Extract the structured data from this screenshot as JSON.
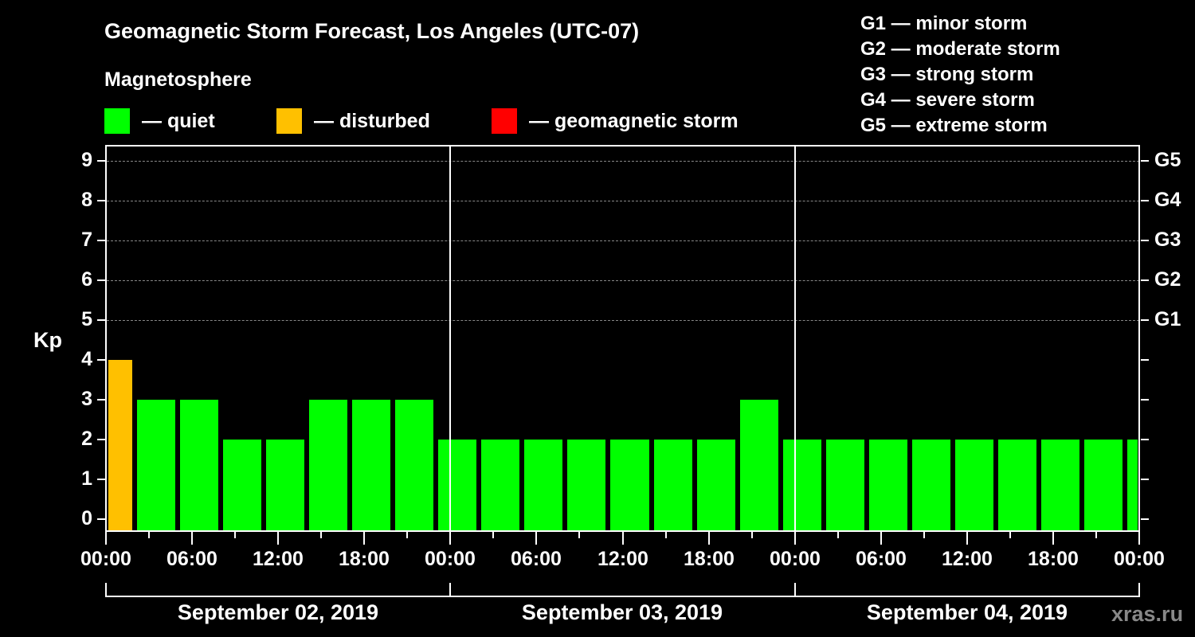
{
  "title": "Geomagnetic Storm Forecast, Los Angeles (UTC-07)",
  "subtitle": "Magnetosphere",
  "legend": [
    {
      "label": "— quiet",
      "color": "#00ff00"
    },
    {
      "label": "— disturbed",
      "color": "#ffc000"
    },
    {
      "label": "— geomagnetic storm",
      "color": "#ff0000"
    }
  ],
  "g_scale": [
    "G1 — minor storm",
    "G2 — moderate storm",
    "G3 — strong storm",
    "G4 — severe storm",
    "G5 — extreme storm"
  ],
  "y_axis_label": "Kp",
  "right_axis_labels": {
    "5": "G1",
    "6": "G2",
    "7": "G3",
    "8": "G4",
    "9": "G5"
  },
  "watermark": "xras.ru",
  "chart_data": {
    "type": "bar",
    "title": "Geomagnetic Storm Forecast, Los Angeles (UTC-07)",
    "xlabel": "",
    "ylabel": "Kp",
    "ylim": [
      0,
      9
    ],
    "yticks": [
      0,
      1,
      2,
      3,
      4,
      5,
      6,
      7,
      8,
      9
    ],
    "grid": "dashed horizontal at Kp 5–9",
    "x_tick_labels": [
      "00:00",
      "06:00",
      "12:00",
      "18:00",
      "00:00",
      "06:00",
      "12:00",
      "18:00",
      "00:00",
      "06:00",
      "12:00",
      "18:00",
      "00:00"
    ],
    "dates": [
      "September 02, 2019",
      "September 03, 2019",
      "September 04, 2019"
    ],
    "interval_hours": 3,
    "categories": [
      "Sep 02 00:00",
      "Sep 02 02:00",
      "Sep 02 05:00",
      "Sep 02 08:00",
      "Sep 02 11:00",
      "Sep 02 14:00",
      "Sep 02 17:00",
      "Sep 02 20:00",
      "Sep 02 23:00",
      "Sep 03 02:00",
      "Sep 03 05:00",
      "Sep 03 08:00",
      "Sep 03 11:00",
      "Sep 03 14:00",
      "Sep 03 17:00",
      "Sep 03 20:00",
      "Sep 03 23:00",
      "Sep 04 02:00",
      "Sep 04 05:00",
      "Sep 04 08:00",
      "Sep 04 11:00",
      "Sep 04 14:00",
      "Sep 04 17:00",
      "Sep 04 20:00",
      "Sep 04 23:00"
    ],
    "values": [
      4,
      3,
      3,
      2,
      2,
      3,
      3,
      3,
      2,
      2,
      2,
      2,
      2,
      2,
      2,
      3,
      2,
      2,
      2,
      2,
      2,
      2,
      2,
      2,
      2
    ],
    "status": [
      "disturbed",
      "quiet",
      "quiet",
      "quiet",
      "quiet",
      "quiet",
      "quiet",
      "quiet",
      "quiet",
      "quiet",
      "quiet",
      "quiet",
      "quiet",
      "quiet",
      "quiet",
      "quiet",
      "quiet",
      "quiet",
      "quiet",
      "quiet",
      "quiet",
      "quiet",
      "quiet",
      "quiet",
      "quiet"
    ],
    "colors": {
      "quiet": "#00ff00",
      "disturbed": "#ffc000",
      "storm": "#ff0000"
    },
    "legend_position": "top"
  }
}
